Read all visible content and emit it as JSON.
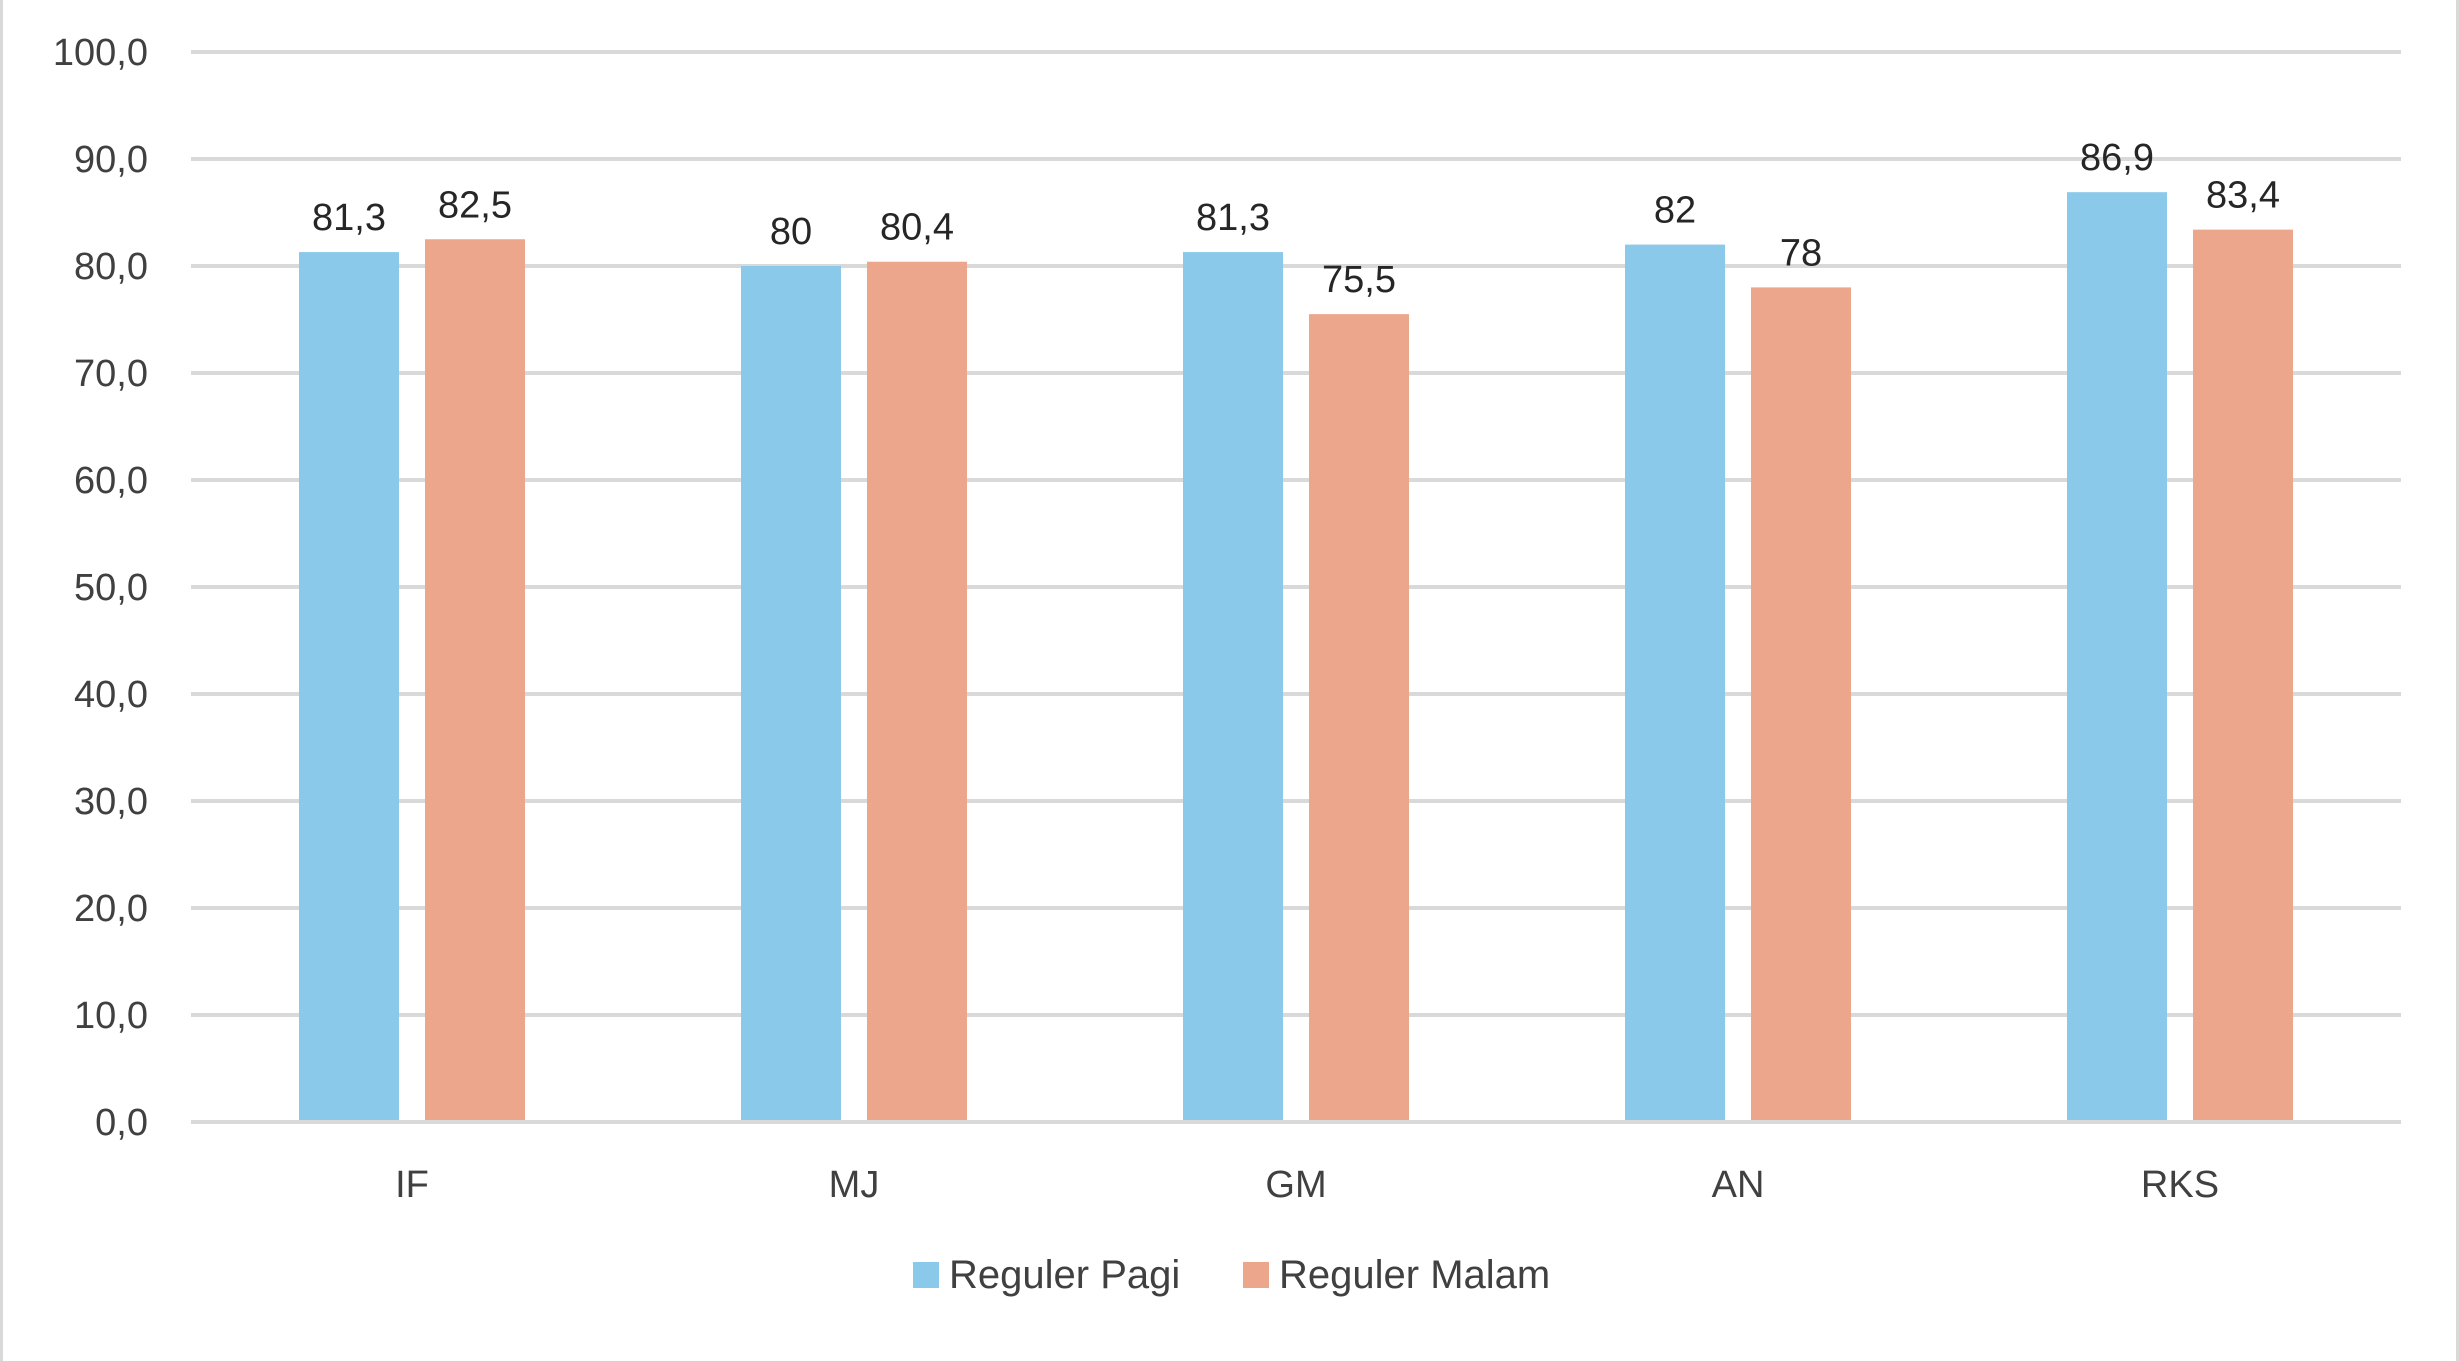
{
  "chart_data": {
    "type": "bar",
    "title": "",
    "xlabel": "",
    "ylabel": "",
    "categories": [
      "IF",
      "MJ",
      "GM",
      "AN",
      "RKS"
    ],
    "ylim": [
      0,
      100
    ],
    "yticks": [
      0,
      10,
      20,
      30,
      40,
      50,
      60,
      70,
      80,
      90,
      100
    ],
    "ytick_labels": [
      "0,0",
      "10,0",
      "20,0",
      "30,0",
      "40,0",
      "50,0",
      "60,0",
      "70,0",
      "80,0",
      "90,0",
      "100,0"
    ],
    "grid": true,
    "legend_position": "bottom",
    "series": [
      {
        "name": "Reguler Pagi",
        "color": "#8bc9ea",
        "values": [
          81.3,
          80,
          81.3,
          82,
          86.9
        ],
        "labels": [
          "81,3",
          "80",
          "81,3",
          "82",
          "86,9"
        ]
      },
      {
        "name": "Reguler Malam",
        "color": "#eba68b",
        "values": [
          82.5,
          80.4,
          75.5,
          78,
          83.4
        ],
        "labels": [
          "82,5",
          "80,4",
          "75,5",
          "78",
          "83,4"
        ]
      }
    ]
  }
}
